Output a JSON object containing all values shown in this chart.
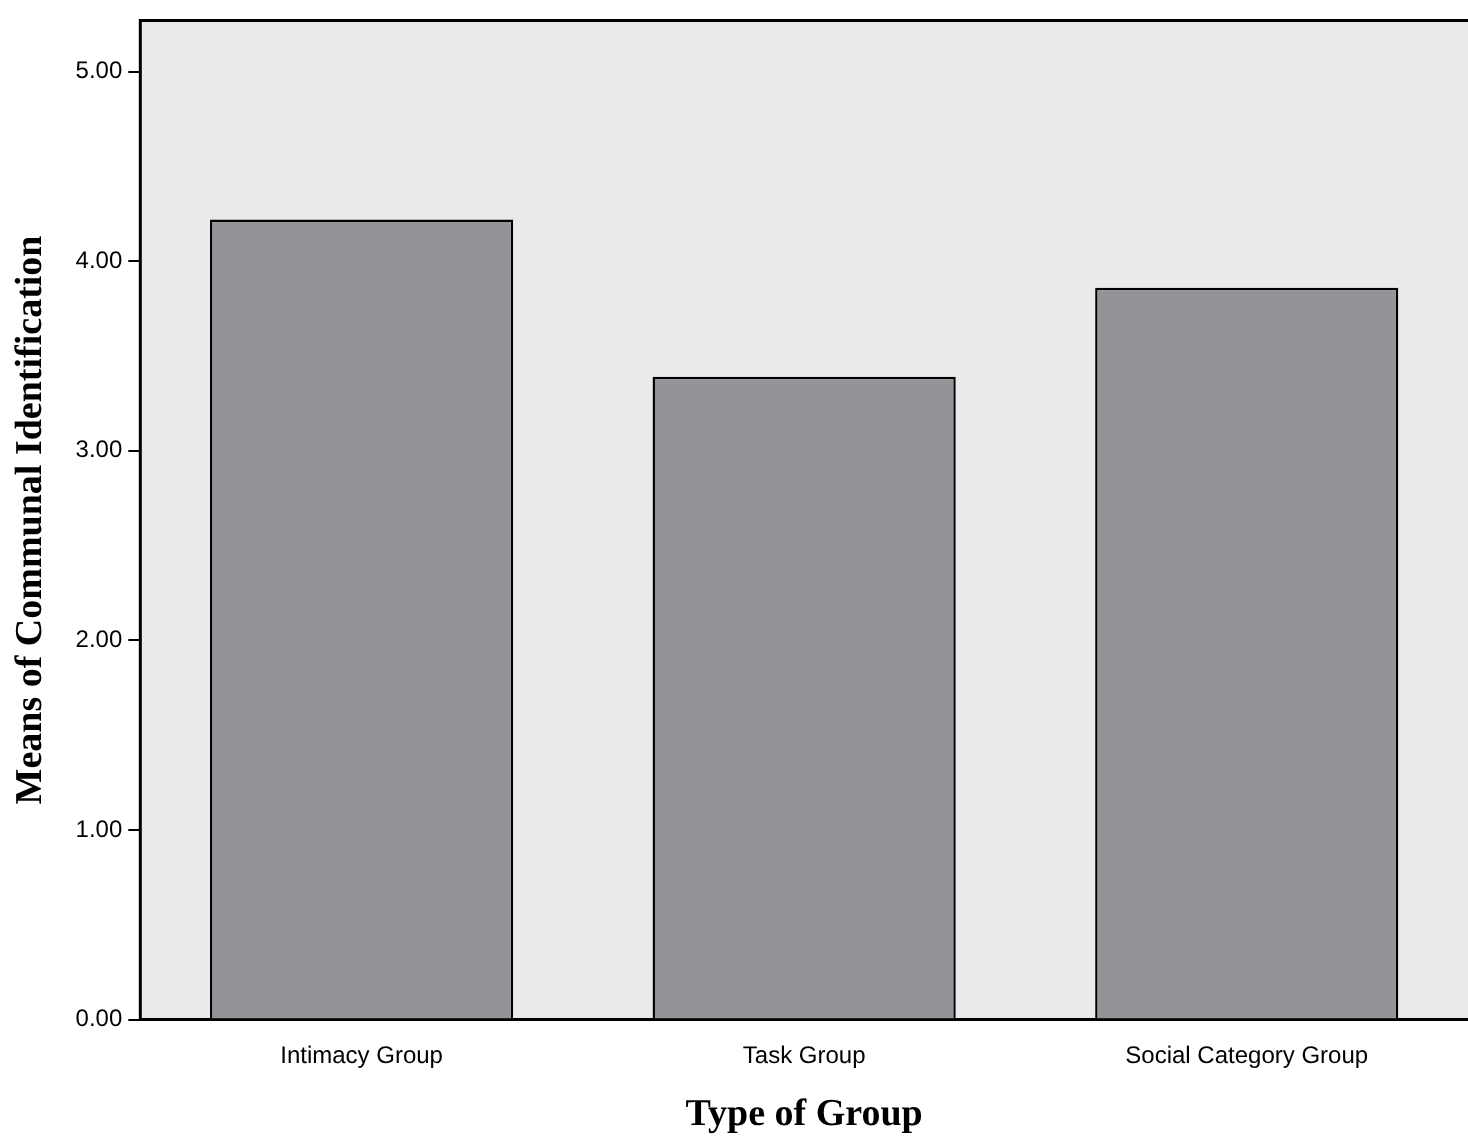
{
  "chart_data": {
    "type": "bar",
    "xlabel": "Type of Group",
    "ylabel": "Means of Communal Identification",
    "categories": [
      "Intimacy Group",
      "Task Group",
      "Social Category Group"
    ],
    "values": [
      4.22,
      3.39,
      3.86
    ],
    "color": "#939498",
    "ylim": [
      0,
      5.27
    ],
    "yticks": [
      {
        "value": 0,
        "label": "0.00"
      },
      {
        "value": 1,
        "label": "1.00"
      },
      {
        "value": 2,
        "label": "2.00"
      },
      {
        "value": 3,
        "label": "3.00"
      },
      {
        "value": 4,
        "label": "4.00"
      },
      {
        "value": 5,
        "label": "5.00"
      }
    ],
    "grid": false,
    "legend": false
  }
}
